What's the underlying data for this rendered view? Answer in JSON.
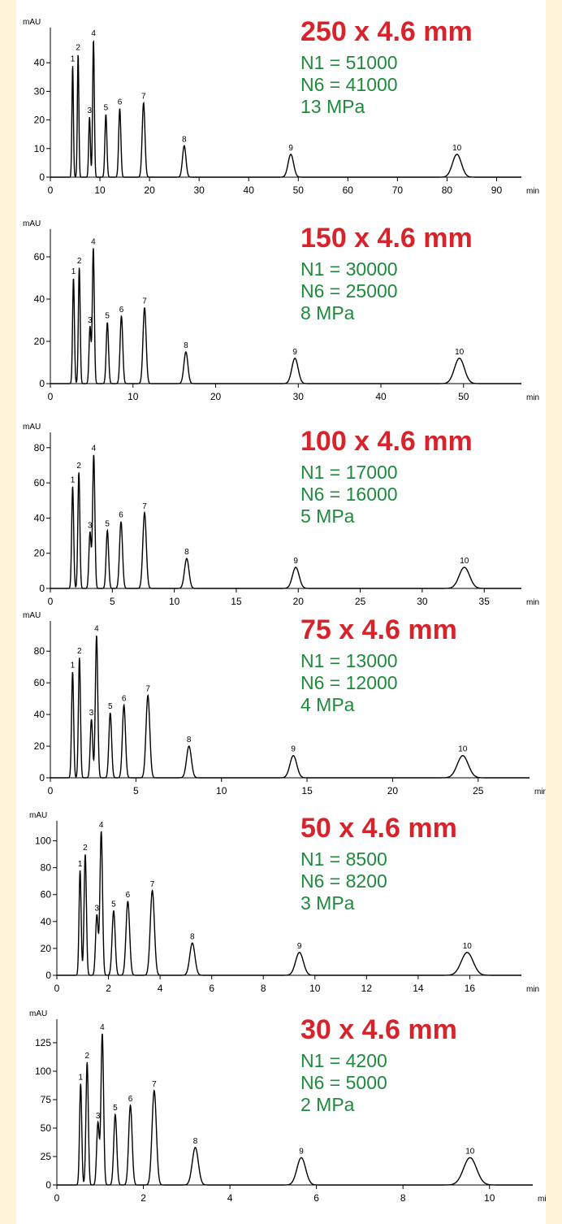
{
  "colors": {
    "page_background": "#fdf3d9",
    "title": "#d8232a",
    "info": "#1e8a3c",
    "trace": "#000000"
  },
  "chart_data": [
    {
      "type": "line",
      "title": "250 x 4.6 mm",
      "info": [
        "N1 = 51000",
        "N6 = 41000",
        "13 MPa"
      ],
      "ylabel": "mAU",
      "xlabel": "min",
      "xlim": [
        0,
        95
      ],
      "ylim": [
        0,
        50
      ],
      "xticks": [
        0,
        10,
        20,
        30,
        40,
        50,
        60,
        70,
        80,
        90
      ],
      "yticks": [
        0,
        10,
        20,
        30,
        40
      ],
      "peaks": [
        {
          "label": "1",
          "rt": 4.5,
          "height": 39,
          "width": 0.15
        },
        {
          "label": "2",
          "rt": 5.6,
          "height": 43,
          "width": 0.15
        },
        {
          "label": "3",
          "rt": 7.9,
          "height": 21,
          "width": 0.17
        },
        {
          "label": "4",
          "rt": 8.7,
          "height": 48,
          "width": 0.17
        },
        {
          "label": "5",
          "rt": 11.2,
          "height": 22,
          "width": 0.2
        },
        {
          "label": "6",
          "rt": 14.0,
          "height": 24,
          "width": 0.22
        },
        {
          "label": "7",
          "rt": 18.8,
          "height": 26,
          "width": 0.28
        },
        {
          "label": "8",
          "rt": 27.0,
          "height": 11,
          "width": 0.35
        },
        {
          "label": "9",
          "rt": 48.5,
          "height": 8,
          "width": 0.55
        },
        {
          "label": "10",
          "rt": 82.0,
          "height": 8,
          "width": 0.9
        }
      ]
    },
    {
      "type": "line",
      "title": "150 x 4.6 mm",
      "info": [
        "N1 = 30000",
        "N6 = 25000",
        "8 MPa"
      ],
      "ylabel": "mAU",
      "xlabel": "min",
      "xlim": [
        0,
        57
      ],
      "ylim": [
        0,
        70
      ],
      "xticks": [
        0,
        10,
        20,
        30,
        40,
        50
      ],
      "yticks": [
        0,
        20,
        40,
        60
      ],
      "peaks": [
        {
          "label": "1",
          "rt": 2.8,
          "height": 50,
          "width": 0.11
        },
        {
          "label": "2",
          "rt": 3.5,
          "height": 55,
          "width": 0.11
        },
        {
          "label": "3",
          "rt": 4.8,
          "height": 27,
          "width": 0.12
        },
        {
          "label": "4",
          "rt": 5.2,
          "height": 64,
          "width": 0.12
        },
        {
          "label": "5",
          "rt": 6.9,
          "height": 29,
          "width": 0.14
        },
        {
          "label": "6",
          "rt": 8.6,
          "height": 32,
          "width": 0.16
        },
        {
          "label": "7",
          "rt": 11.4,
          "height": 36,
          "width": 0.19
        },
        {
          "label": "8",
          "rt": 16.4,
          "height": 15,
          "width": 0.24
        },
        {
          "label": "9",
          "rt": 29.6,
          "height": 12,
          "width": 0.38
        },
        {
          "label": "10",
          "rt": 49.5,
          "height": 12,
          "width": 0.6
        }
      ]
    },
    {
      "type": "line",
      "title": "100 x 4.6 mm",
      "info": [
        "N1 = 17000",
        "N6 = 16000",
        "5 MPa"
      ],
      "ylabel": "mAU",
      "xlabel": "min",
      "xlim": [
        0,
        38
      ],
      "ylim": [
        0,
        85
      ],
      "xticks": [
        0,
        5,
        10,
        15,
        20,
        25,
        30,
        35
      ],
      "yticks": [
        0,
        20,
        40,
        60,
        80
      ],
      "peaks": [
        {
          "label": "1",
          "rt": 1.8,
          "height": 58,
          "width": 0.08
        },
        {
          "label": "2",
          "rt": 2.3,
          "height": 66,
          "width": 0.08
        },
        {
          "label": "3",
          "rt": 3.2,
          "height": 32,
          "width": 0.09
        },
        {
          "label": "4",
          "rt": 3.5,
          "height": 76,
          "width": 0.09
        },
        {
          "label": "5",
          "rt": 4.6,
          "height": 33,
          "width": 0.1
        },
        {
          "label": "6",
          "rt": 5.7,
          "height": 38,
          "width": 0.12
        },
        {
          "label": "7",
          "rt": 7.6,
          "height": 43,
          "width": 0.14
        },
        {
          "label": "8",
          "rt": 11.0,
          "height": 17,
          "width": 0.18
        },
        {
          "label": "9",
          "rt": 19.8,
          "height": 12,
          "width": 0.27
        },
        {
          "label": "10",
          "rt": 33.4,
          "height": 12,
          "width": 0.42
        }
      ]
    },
    {
      "type": "line",
      "title": "75 x 4.6 mm",
      "info": [
        "N1 = 13000",
        "N6 = 12000",
        "4 MPa"
      ],
      "ylabel": "mAU",
      "xlabel": "min",
      "xlim": [
        0,
        28
      ],
      "ylim": [
        0,
        95
      ],
      "xticks": [
        0,
        5,
        10,
        15,
        20,
        25
      ],
      "yticks": [
        0,
        20,
        40,
        60,
        80
      ],
      "peaks": [
        {
          "label": "1",
          "rt": 1.3,
          "height": 67,
          "width": 0.06
        },
        {
          "label": "2",
          "rt": 1.7,
          "height": 76,
          "width": 0.06
        },
        {
          "label": "3",
          "rt": 2.4,
          "height": 37,
          "width": 0.07
        },
        {
          "label": "4",
          "rt": 2.7,
          "height": 90,
          "width": 0.07
        },
        {
          "label": "5",
          "rt": 3.5,
          "height": 41,
          "width": 0.08
        },
        {
          "label": "6",
          "rt": 4.3,
          "height": 46,
          "width": 0.09
        },
        {
          "label": "7",
          "rt": 5.7,
          "height": 52,
          "width": 0.11
        },
        {
          "label": "8",
          "rt": 8.1,
          "height": 20,
          "width": 0.14
        },
        {
          "label": "9",
          "rt": 14.2,
          "height": 14,
          "width": 0.2
        },
        {
          "label": "10",
          "rt": 24.1,
          "height": 14,
          "width": 0.32
        }
      ]
    },
    {
      "type": "line",
      "title": "50 x 4.6 mm",
      "info": [
        "N1 = 8500",
        "N6 = 8200",
        "3 MPa"
      ],
      "ylabel": "mAU",
      "xlabel": "min",
      "xlim": [
        0,
        18
      ],
      "ylim": [
        0,
        110
      ],
      "xticks": [
        0,
        2,
        4,
        6,
        8,
        10,
        12,
        14,
        16
      ],
      "yticks": [
        0,
        20,
        40,
        60,
        80,
        100
      ],
      "peaks": [
        {
          "label": "1",
          "rt": 0.9,
          "height": 78,
          "width": 0.04
        },
        {
          "label": "2",
          "rt": 1.1,
          "height": 90,
          "width": 0.045
        },
        {
          "label": "3",
          "rt": 1.55,
          "height": 45,
          "width": 0.05
        },
        {
          "label": "4",
          "rt": 1.72,
          "height": 107,
          "width": 0.05
        },
        {
          "label": "5",
          "rt": 2.2,
          "height": 48,
          "width": 0.06
        },
        {
          "label": "6",
          "rt": 2.75,
          "height": 55,
          "width": 0.07
        },
        {
          "label": "7",
          "rt": 3.7,
          "height": 63,
          "width": 0.08
        },
        {
          "label": "8",
          "rt": 5.25,
          "height": 24,
          "width": 0.1
        },
        {
          "label": "9",
          "rt": 9.4,
          "height": 17,
          "width": 0.15
        },
        {
          "label": "10",
          "rt": 15.9,
          "height": 17,
          "width": 0.23
        }
      ]
    },
    {
      "type": "line",
      "title": "30 x 4.6 mm",
      "info": [
        "N1 = 4200",
        "N6 = 5000",
        "2 MPa"
      ],
      "ylabel": "mAU",
      "xlabel": "min",
      "xlim": [
        0,
        11
      ],
      "ylim": [
        0,
        140
      ],
      "xticks": [
        0,
        2,
        4,
        6,
        8,
        10
      ],
      "yticks": [
        0,
        25,
        50,
        75,
        100,
        125
      ],
      "peaks": [
        {
          "label": "1",
          "rt": 0.55,
          "height": 89,
          "width": 0.025
        },
        {
          "label": "2",
          "rt": 0.7,
          "height": 108,
          "width": 0.027
        },
        {
          "label": "3",
          "rt": 0.95,
          "height": 55,
          "width": 0.03
        },
        {
          "label": "4",
          "rt": 1.05,
          "height": 133,
          "width": 0.03
        },
        {
          "label": "5",
          "rt": 1.35,
          "height": 62,
          "width": 0.035
        },
        {
          "label": "6",
          "rt": 1.7,
          "height": 70,
          "width": 0.04
        },
        {
          "label": "7",
          "rt": 2.25,
          "height": 83,
          "width": 0.05
        },
        {
          "label": "8",
          "rt": 3.2,
          "height": 33,
          "width": 0.07
        },
        {
          "label": "9",
          "rt": 5.65,
          "height": 24,
          "width": 0.1
        },
        {
          "label": "10",
          "rt": 9.55,
          "height": 24,
          "width": 0.15
        }
      ]
    }
  ]
}
